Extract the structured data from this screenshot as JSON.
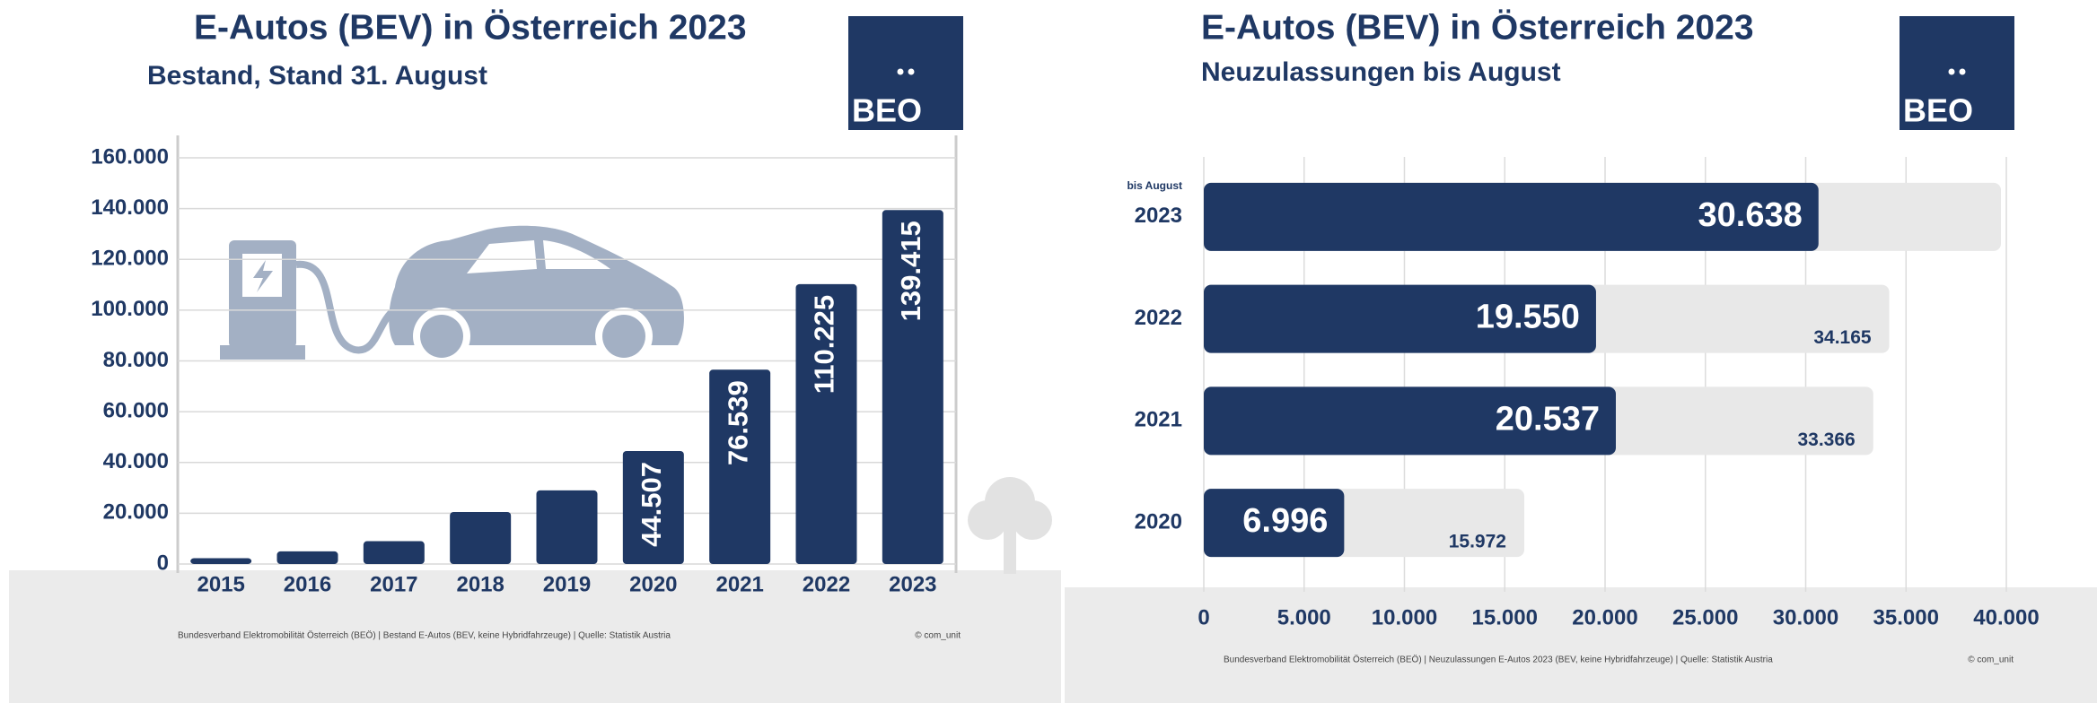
{
  "chart_data": [
    {
      "type": "bar",
      "orientation": "vertical",
      "title": "E-Autos (BEV) in Österreich 2023",
      "subtitle": "Bestand, Stand 31. August",
      "logo": "BEO",
      "categories": [
        "2015",
        "2016",
        "2017",
        "2018",
        "2019",
        "2020",
        "2021",
        "2022",
        "2023"
      ],
      "values": [
        2300,
        5000,
        9000,
        20500,
        29000,
        44507,
        76539,
        110225,
        139415
      ],
      "value_labels": [
        null,
        null,
        null,
        null,
        null,
        "44.507",
        "76.539",
        "110.225",
        "139.415"
      ],
      "color": "#1f3864",
      "ylim": [
        0,
        160000
      ],
      "yticks": [
        0,
        {
          "value": 20000,
          "label": "20.000"
        },
        {
          "value": 40000,
          "label": "40.000"
        },
        {
          "value": 60000,
          "label": "60.000"
        },
        {
          "value": 80000,
          "label": "80.000"
        },
        {
          "value": 100000,
          "label": "100.000"
        },
        {
          "value": 120000,
          "label": "120.000"
        },
        {
          "value": 140000,
          "label": "140.000"
        },
        {
          "value": 160000,
          "label": "160.000"
        }
      ],
      "grid": true,
      "note": "Bundesverband Elektromobilität Österreich (BEÖ) | Bestand E-Autos (BEV, keine Hybridfahrzeuge) | Quelle: Statistik Austria",
      "copyright": "© com_unit"
    },
    {
      "type": "bar",
      "orientation": "horizontal",
      "title": "E-Autos (BEV) in Österreich 2023",
      "subtitle": "Neuzulassungen bis August",
      "logo": "BEO",
      "annotation": "bis August",
      "categories": [
        "2023",
        "2022",
        "2021",
        "2020"
      ],
      "series": [
        {
          "color": "#1f3864",
          "values": [
            30638,
            19550,
            20537,
            6996
          ],
          "value_labels": [
            "30.638",
            "19.550",
            "20.537",
            "6.996"
          ]
        },
        {
          "color": "#e8e8e8",
          "values": [
            null,
            34165,
            33366,
            15972
          ],
          "value_labels": [
            null,
            "34.165",
            "33.366",
            "15.972"
          ]
        }
      ],
      "xlim": [
        0,
        40000
      ],
      "xticks": [
        0,
        {
          "value": 5000,
          "label": "5.000"
        },
        {
          "value": 10000,
          "label": "10.000"
        },
        {
          "value": 15000,
          "label": "15.000"
        },
        {
          "value": 20000,
          "label": "20.000"
        },
        {
          "value": 25000,
          "label": "25.000"
        },
        {
          "value": 30000,
          "label": "30.000"
        },
        {
          "value": 35000,
          "label": "35.000"
        },
        {
          "value": 40000,
          "label": "40.000"
        }
      ],
      "grid": true,
      "note": "Bundesverband Elektromobilität Österreich (BEÖ) | Neuzulassungen E-Autos 2023 (BEV, keine Hybridfahrzeuge) | Quelle: Statistik Austria",
      "copyright": "© com_unit"
    }
  ]
}
